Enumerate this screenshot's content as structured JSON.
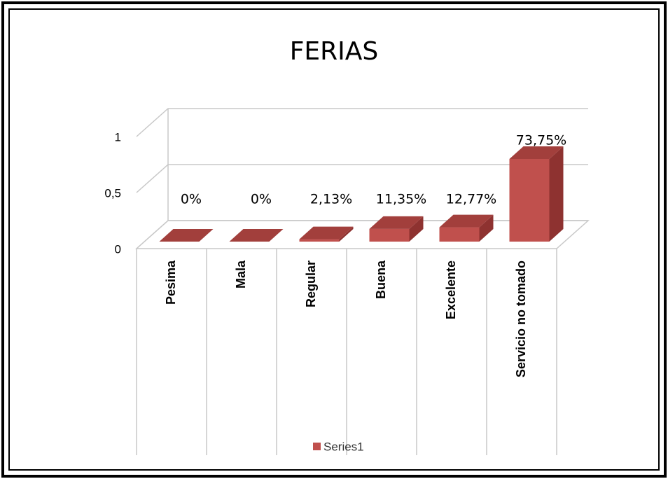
{
  "chart_data": {
    "type": "bar3d",
    "title": "FERIAS",
    "categories": [
      "Pesima",
      "Mala",
      "Regular",
      "Buena",
      "Excelente",
      "Servicio no tomado"
    ],
    "series": [
      {
        "name": "Series1",
        "color": "#c0504d",
        "values": [
          0,
          0,
          0.0213,
          0.1135,
          0.1277,
          0.7375
        ],
        "value_labels": [
          "0%",
          "0%",
          "2,13%",
          "11,35%",
          "12,77%",
          "73,75%"
        ]
      }
    ],
    "ylim": [
      0,
      1
    ],
    "yticks": [
      0,
      {
        "value": 0.5,
        "label": "0,5"
      },
      1
    ],
    "grid": true,
    "legend": "bottom"
  }
}
